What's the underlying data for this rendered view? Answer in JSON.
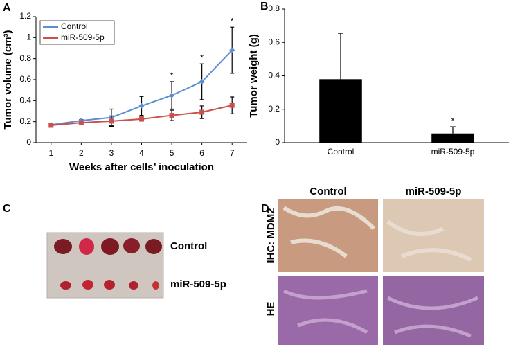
{
  "chart_data": [
    {
      "type": "line",
      "panel": "A",
      "x_label": "Weeks after cells’ inoculation",
      "y_label": "Tumor volume (cm³)",
      "x": [
        1,
        2,
        3,
        4,
        5,
        6,
        7
      ],
      "xlim": [
        0.5,
        7.5
      ],
      "xticks": [
        1,
        2,
        3,
        4,
        5,
        6,
        7
      ],
      "ylim": [
        0,
        1.2
      ],
      "yticks": [
        0,
        0.2,
        0.4,
        0.6,
        0.8,
        1,
        1.2
      ],
      "legend": "upper left",
      "series": [
        {
          "name": "Control",
          "color": "#5b8fd0",
          "marker": "diamond",
          "values": [
            0.17,
            0.21,
            0.24,
            0.35,
            0.45,
            0.58,
            0.88
          ],
          "errors": [
            0.01,
            0.01,
            0.08,
            0.09,
            0.13,
            0.17,
            0.22
          ]
        },
        {
          "name": "miR-509-5p",
          "color": "#c9504d",
          "marker": "square",
          "values": [
            0.165,
            0.19,
            0.205,
            0.225,
            0.26,
            0.29,
            0.355
          ],
          "errors": [
            0.01,
            0.01,
            0.05,
            0.02,
            0.05,
            0.06,
            0.08
          ]
        }
      ],
      "annotations": [
        {
          "x": 5,
          "text": "*"
        },
        {
          "x": 6,
          "text": "*"
        },
        {
          "x": 7,
          "text": "*"
        }
      ]
    },
    {
      "type": "bar",
      "panel": "B",
      "y_label": "Tumor weight (g)",
      "categories": [
        "Control",
        "miR-509-5p"
      ],
      "values": [
        0.38,
        0.055
      ],
      "errors": [
        0.275,
        0.04
      ],
      "color": "#000000",
      "ylim": [
        0,
        0.8
      ],
      "yticks": [
        0,
        0.2,
        0.4,
        0.6,
        0.8
      ],
      "annotations": [
        {
          "category": "miR-509-5p",
          "text": "*"
        }
      ]
    }
  ],
  "panel_c": {
    "label": "C",
    "rows": [
      "Control",
      "miR-509-5p"
    ]
  },
  "panel_d": {
    "label": "D",
    "columns": [
      "Control",
      "miR-509-5p"
    ],
    "rows": [
      "IHC: MDM2",
      "HE"
    ]
  }
}
